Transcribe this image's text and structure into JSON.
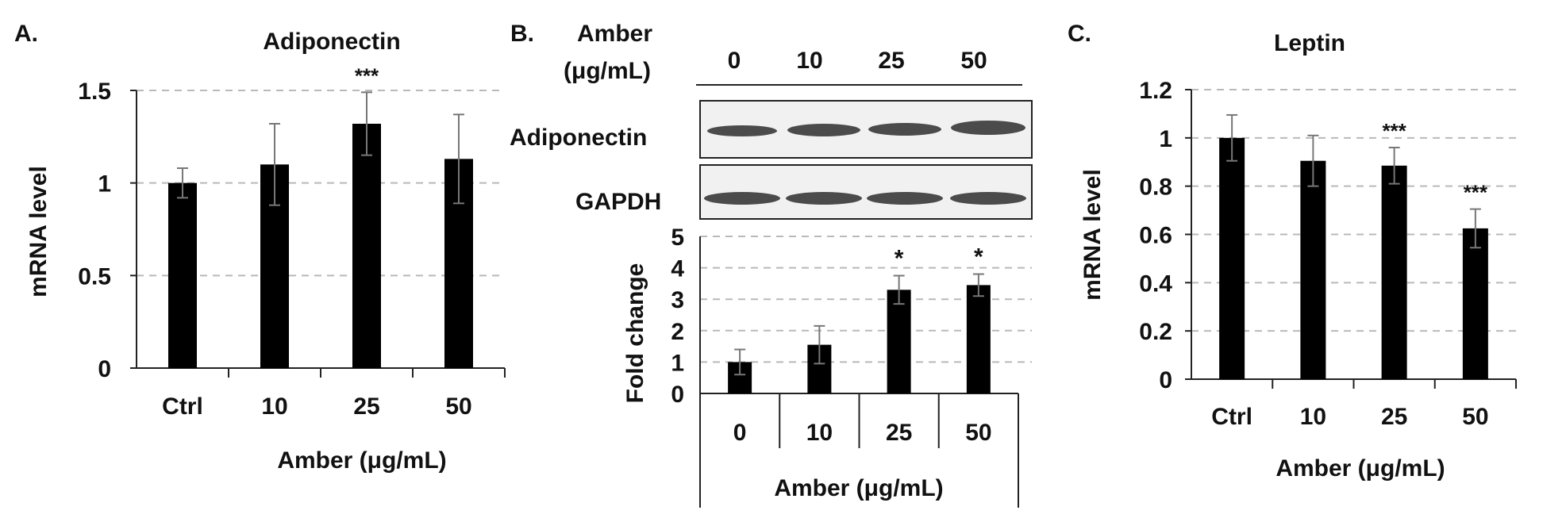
{
  "panel_labels": {
    "a": "A.",
    "b": "B.",
    "c": "C."
  },
  "chart_data": [
    {
      "panel": "A.",
      "type": "bar",
      "title": "Adiponectin",
      "xlabel": "Amber (μg/mL)",
      "ylabel": "mRNA level",
      "categories": [
        "Ctrl",
        "10",
        "25",
        "50"
      ],
      "values": [
        1.0,
        1.1,
        1.32,
        1.13
      ],
      "errors": [
        0.08,
        0.22,
        0.17,
        0.24
      ],
      "significance": [
        "",
        "",
        "***",
        ""
      ],
      "ylim": [
        0,
        1.5
      ],
      "yticks": [
        "0",
        "0.5",
        "1",
        "1.5"
      ],
      "ytick_values": [
        0,
        0.5,
        1,
        1.5
      ],
      "grid": true
    },
    {
      "panel": "B.",
      "type": "bar",
      "title": "",
      "xlabel": "Amber (μg/mL)",
      "ylabel": "Fold change",
      "categories": [
        "0",
        "10",
        "25",
        "50"
      ],
      "values": [
        1.0,
        1.55,
        3.3,
        3.45
      ],
      "errors": [
        0.4,
        0.6,
        0.45,
        0.35
      ],
      "significance": [
        "",
        "",
        "*",
        "*"
      ],
      "ylim": [
        0,
        5
      ],
      "yticks": [
        "0",
        "1",
        "2",
        "3",
        "4",
        "5"
      ],
      "ytick_values": [
        0,
        1,
        2,
        3,
        4,
        5
      ],
      "grid": true
    },
    {
      "panel": "C.",
      "type": "bar",
      "title": "Leptin",
      "xlabel": "Amber (μg/mL)",
      "ylabel": "mRNA level",
      "categories": [
        "Ctrl",
        "10",
        "25",
        "50"
      ],
      "values": [
        1.0,
        0.905,
        0.885,
        0.625
      ],
      "errors": [
        0.095,
        0.105,
        0.075,
        0.08
      ],
      "significance": [
        "",
        "",
        "***",
        "***"
      ],
      "ylim": [
        0,
        1.2
      ],
      "yticks": [
        "0",
        "0.2",
        "0.4",
        "0.6",
        "0.8",
        "1",
        "1.2"
      ],
      "ytick_values": [
        0,
        0.2,
        0.4,
        0.6,
        0.8,
        1,
        1.2
      ],
      "grid": true
    }
  ],
  "blot": {
    "header_line1": "Amber",
    "header_line2": "(μg/mL)",
    "lanes": [
      "0",
      "10",
      "25",
      "50"
    ],
    "rows": [
      "Adiponectin",
      "GAPDH"
    ]
  }
}
